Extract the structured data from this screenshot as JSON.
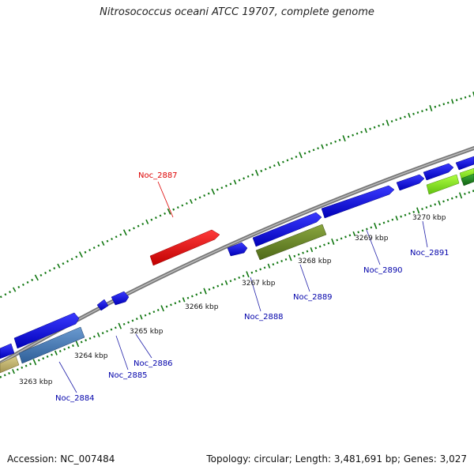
{
  "title": "Nitrosococcus oceani ATCC 19707, complete genome",
  "footer": {
    "accession": "Accession: NC_007484",
    "summary": "Topology: circular; Length: 3,481,691 bp; Genes: 3,027"
  },
  "scale_labels": [
    {
      "label": "3263 kbp",
      "kbp": 3263
    },
    {
      "label": "3264 kbp",
      "kbp": 3264
    },
    {
      "label": "3265 kbp",
      "kbp": 3265
    },
    {
      "label": "3266 kbp",
      "kbp": 3266
    },
    {
      "label": "3267 kbp",
      "kbp": 3267
    },
    {
      "label": "3268 kbp",
      "kbp": 3268
    },
    {
      "label": "3269 kbp",
      "kbp": 3269
    },
    {
      "label": "3270 kbp",
      "kbp": 3270
    }
  ],
  "gene_labels": [
    {
      "label": "Noc_2884",
      "highlight": false
    },
    {
      "label": "Noc_2885",
      "highlight": false
    },
    {
      "label": "Noc_2886",
      "highlight": false
    },
    {
      "label": "Noc_2887",
      "highlight": true
    },
    {
      "label": "Noc_2888",
      "highlight": false
    },
    {
      "label": "Noc_2889",
      "highlight": false
    },
    {
      "label": "Noc_2890",
      "highlight": false
    },
    {
      "label": "Noc_2891",
      "highlight": false
    }
  ],
  "colors": {
    "cds": "#0000ee",
    "highlight": "#ee0000",
    "backbone": "#888888",
    "ticks": "#117711",
    "label": "#0000aa",
    "label_highlight": "#dd0000"
  }
}
